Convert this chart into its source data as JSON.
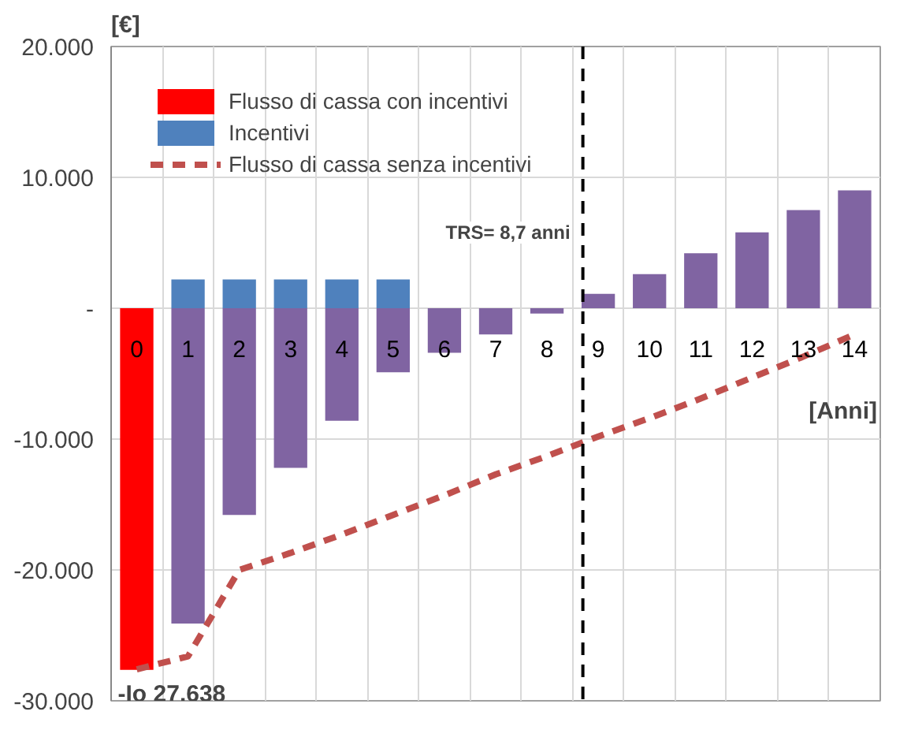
{
  "chart_data": {
    "type": "bar",
    "stacked": true,
    "xlabel": "[Anni]",
    "ylabel": "[€]",
    "x": [
      0,
      1,
      2,
      3,
      4,
      5,
      6,
      7,
      8,
      9,
      10,
      11,
      12,
      13,
      14
    ],
    "xlim": [
      -0.5,
      14.5
    ],
    "xticks": [
      0,
      1,
      2,
      3,
      4,
      5,
      6,
      7,
      8,
      9,
      10,
      11,
      12,
      13,
      14
    ],
    "series": [
      {
        "name": "Flusso di cassa con incentivi",
        "color": "#8064a2",
        "colors": [
          "#ff0000",
          "#8064a2",
          "#8064a2",
          "#8064a2",
          "#8064a2",
          "#8064a2",
          "#8064a2",
          "#8064a2",
          "#8064a2",
          "#8064a2",
          "#8064a2",
          "#8064a2",
          "#8064a2",
          "#8064a2",
          "#8064a2"
        ],
        "values": [
          -27638,
          -24100,
          -15800,
          -12200,
          -8600,
          -4900,
          -3400,
          -2000,
          -400,
          1100,
          2600,
          4200,
          5800,
          7500,
          9000
        ]
      },
      {
        "name": "Incentivi",
        "color": "#4f81bd",
        "values": [
          null,
          2200,
          2200,
          2200,
          2200,
          2200,
          null,
          null,
          null,
          null,
          null,
          null,
          null,
          null,
          null
        ]
      },
      {
        "name": "Flusso di cassa senza incentivi",
        "type": "line",
        "color": "#c0504d",
        "line_style": "dashed",
        "values": [
          -27600,
          -26600,
          -20000,
          -18700,
          -17300,
          -15800,
          -14300,
          -12700,
          -11300,
          -9800,
          -8400,
          -6900,
          -5300,
          -3700,
          -2000
        ]
      }
    ],
    "ylim": [
      -30000,
      20000
    ],
    "yticks": [
      {
        "value": -30000,
        "label": "-30.000"
      },
      {
        "value": -20000,
        "label": "-20.000"
      },
      {
        "value": -10000,
        "label": "-10.000"
      },
      {
        "value": 0,
        "label": "-"
      },
      {
        "value": 10000,
        "label": "10.000"
      },
      {
        "value": 20000,
        "label": "20.000"
      }
    ],
    "ref_lines": [
      {
        "axis": "x",
        "value": 8.7,
        "label": "TRS= 8,7 anni",
        "color": "#000000",
        "line_style": "dashed"
      }
    ],
    "annotations": [
      {
        "text": "-Io 27.638",
        "x": 0,
        "y": -27638
      }
    ],
    "grid": true,
    "legend": "top left"
  }
}
